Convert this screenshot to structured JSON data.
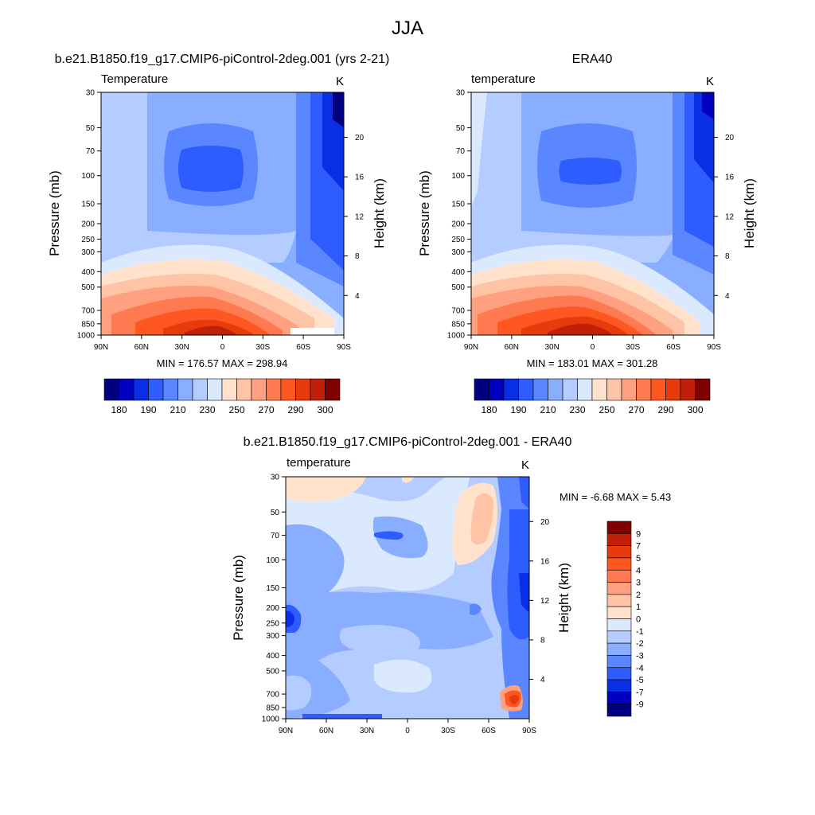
{
  "figure": {
    "title": "JJA"
  },
  "palette_temperature": [
    "#000080",
    "#0000c0",
    "#0a2ee6",
    "#2e5cff",
    "#5a87ff",
    "#8aaeff",
    "#b4ccff",
    "#dbe9ff",
    "#ffe1cc",
    "#ffc4a6",
    "#ffa080",
    "#ff7a50",
    "#ff5722",
    "#e83a0a",
    "#c0200a",
    "#800000"
  ],
  "palette_difference": [
    "#000080",
    "#0000c0",
    "#0a2ee6",
    "#2e5cff",
    "#5a87ff",
    "#8aaeff",
    "#b4ccff",
    "#dbe9ff",
    "#ffe1cc",
    "#ffc4a6",
    "#ffa080",
    "#ff7a50",
    "#ff5722",
    "#e83a0a",
    "#c0200a",
    "#800000"
  ],
  "chart_data": [
    {
      "type": "heatmap",
      "title": "b.e21.B1850.f19_g17.CMIP6-piControl-2deg.001 (yrs 2-21)",
      "left_label": "Temperature",
      "units": "K",
      "ylabel": "Pressure (mb)",
      "ylabel_right": "Height (km)",
      "x_ticks": [
        "90N",
        "60N",
        "30N",
        "0",
        "30S",
        "60S",
        "90S"
      ],
      "y_ticks": [
        "30",
        "50",
        "70",
        "100",
        "150",
        "200",
        "250",
        "300",
        "400",
        "500",
        "700",
        "850",
        "1000"
      ],
      "y_right_ticks": [
        "20",
        "16",
        "12",
        "8",
        "4"
      ],
      "stats": "MIN = 176.57  MAX = 298.94",
      "colorbar_labels": [
        "180",
        "190",
        "210",
        "230",
        "250",
        "270",
        "290",
        "300"
      ]
    },
    {
      "type": "heatmap",
      "title": "ERA40",
      "left_label": "temperature",
      "units": "K",
      "ylabel": "Pressure (mb)",
      "ylabel_right": "Height (km)",
      "x_ticks": [
        "90N",
        "60N",
        "30N",
        "0",
        "30S",
        "60S",
        "90S"
      ],
      "y_ticks": [
        "30",
        "50",
        "70",
        "100",
        "150",
        "200",
        "250",
        "300",
        "400",
        "500",
        "700",
        "850",
        "1000"
      ],
      "y_right_ticks": [
        "20",
        "16",
        "12",
        "8",
        "4"
      ],
      "stats": "MIN = 183.01  MAX = 301.28",
      "colorbar_labels": [
        "180",
        "190",
        "210",
        "230",
        "250",
        "270",
        "290",
        "300"
      ]
    },
    {
      "type": "heatmap",
      "title": "b.e21.B1850.f19_g17.CMIP6-piControl-2deg.001 - ERA40",
      "left_label": "temperature",
      "units": "K",
      "ylabel": "Pressure (mb)",
      "ylabel_right": "Height (km)",
      "x_ticks": [
        "90N",
        "60N",
        "30N",
        "0",
        "30S",
        "60S",
        "90S"
      ],
      "y_ticks": [
        "30",
        "50",
        "70",
        "100",
        "150",
        "200",
        "250",
        "300",
        "400",
        "500",
        "700",
        "850",
        "1000"
      ],
      "y_right_ticks": [
        "20",
        "16",
        "12",
        "8",
        "4"
      ],
      "stats": "MIN =  -6.68  MAX =   5.43",
      "colorbar_labels": [
        "9",
        "7",
        "5",
        "4",
        "3",
        "2",
        "1",
        "0",
        "-1",
        "-2",
        "-3",
        "-4",
        "-5",
        "-7",
        "-9"
      ]
    }
  ]
}
